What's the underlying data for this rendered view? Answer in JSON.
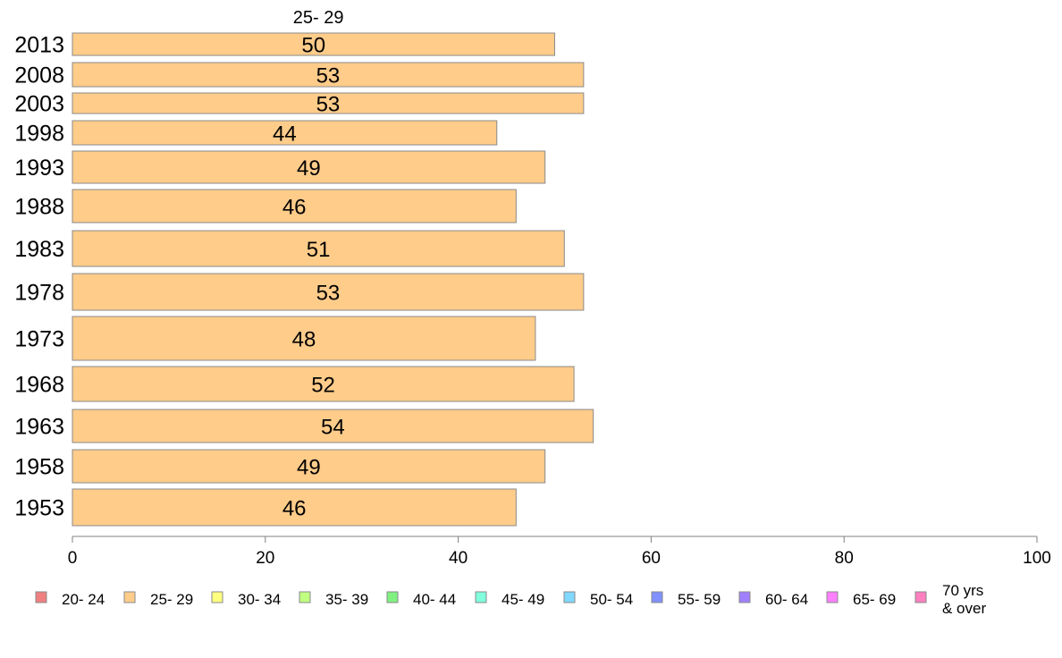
{
  "chart_data": {
    "type": "bar",
    "orientation": "horizontal",
    "series_title": "25- 29",
    "categories": [
      "2013",
      "2008",
      "2003",
      "1998",
      "1993",
      "1988",
      "1983",
      "1978",
      "1973",
      "1968",
      "1963",
      "1958",
      "1953"
    ],
    "series": [
      {
        "name": "25- 29",
        "values": [
          50,
          53,
          53,
          44,
          49,
          46,
          51,
          53,
          48,
          52,
          54,
          49,
          46
        ],
        "color": "#ffcc8a"
      }
    ],
    "xlim": [
      0,
      100
    ],
    "x_ticks": [
      "0",
      "20",
      "40",
      "60",
      "80",
      "100"
    ],
    "grid": false,
    "legend_position": "bottom",
    "legend": [
      {
        "label": "20- 24",
        "color": "#f08080"
      },
      {
        "label": "25- 29",
        "color": "#ffcc8a"
      },
      {
        "label": "30- 34",
        "color": "#ffff80"
      },
      {
        "label": "35- 39",
        "color": "#c0ff80"
      },
      {
        "label": "40- 44",
        "color": "#80f080"
      },
      {
        "label": "45- 49",
        "color": "#80ffdd"
      },
      {
        "label": "50- 54",
        "color": "#80d8ff"
      },
      {
        "label": "55- 59",
        "color": "#8090ff"
      },
      {
        "label": "60- 64",
        "color": "#a080ff"
      },
      {
        "label": "65- 69",
        "color": "#ff80ff"
      },
      {
        "label": "70 yrs\n& over",
        "color": "#ff80c0"
      }
    ]
  }
}
